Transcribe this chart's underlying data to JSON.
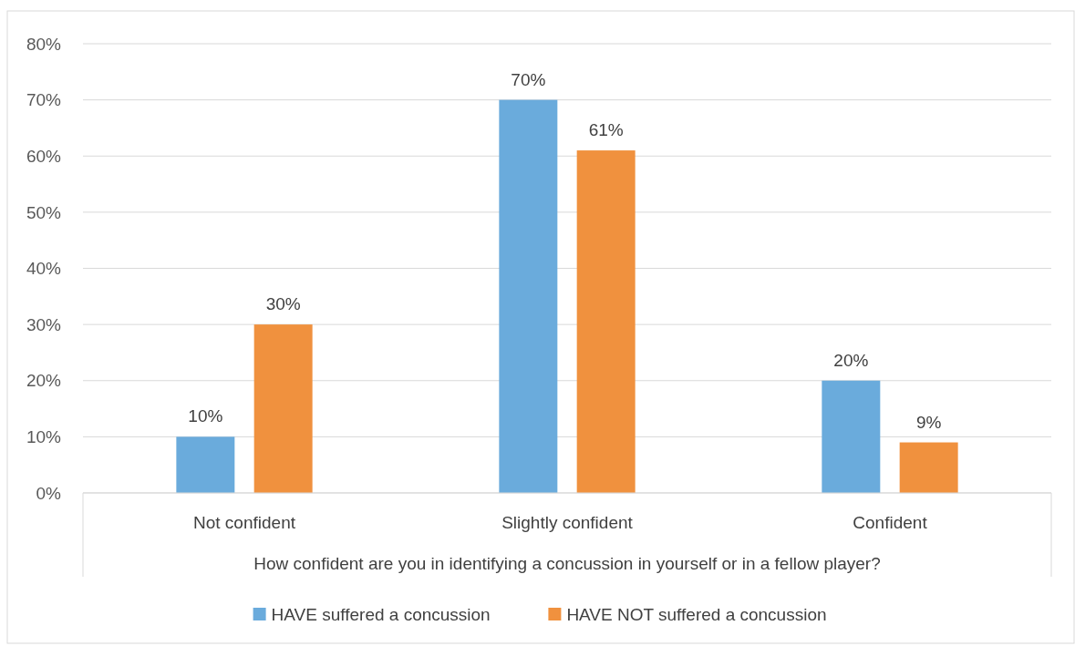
{
  "chart_data": {
    "type": "bar",
    "xlabel": "How confident are you in identifying a concussion in yourself or in a fellow player?",
    "categories": [
      "Not confident",
      "Slightly confident",
      "Confident"
    ],
    "series": [
      {
        "name": "HAVE suffered a concussion",
        "color": "#6aabdc",
        "values": [
          10,
          70,
          20
        ]
      },
      {
        "name": "HAVE NOT suffered a concussion",
        "color": "#f0913e",
        "values": [
          30,
          61,
          9
        ]
      }
    ],
    "ylim": [
      0,
      80
    ],
    "yticks": [
      {
        "value": 0,
        "label": "0%"
      },
      {
        "value": 10,
        "label": "10%"
      },
      {
        "value": 20,
        "label": "20%"
      },
      {
        "value": 30,
        "label": "30%"
      },
      {
        "value": 40,
        "label": "40%"
      },
      {
        "value": 50,
        "label": "50%"
      },
      {
        "value": 60,
        "label": "60%"
      },
      {
        "value": 70,
        "label": "70%"
      },
      {
        "value": 80,
        "label": "80%"
      }
    ],
    "value_labels": [
      [
        "10%",
        "70%",
        "20%"
      ],
      [
        "30%",
        "61%",
        "9%"
      ]
    ],
    "grid": "y",
    "legend": "bottom"
  }
}
